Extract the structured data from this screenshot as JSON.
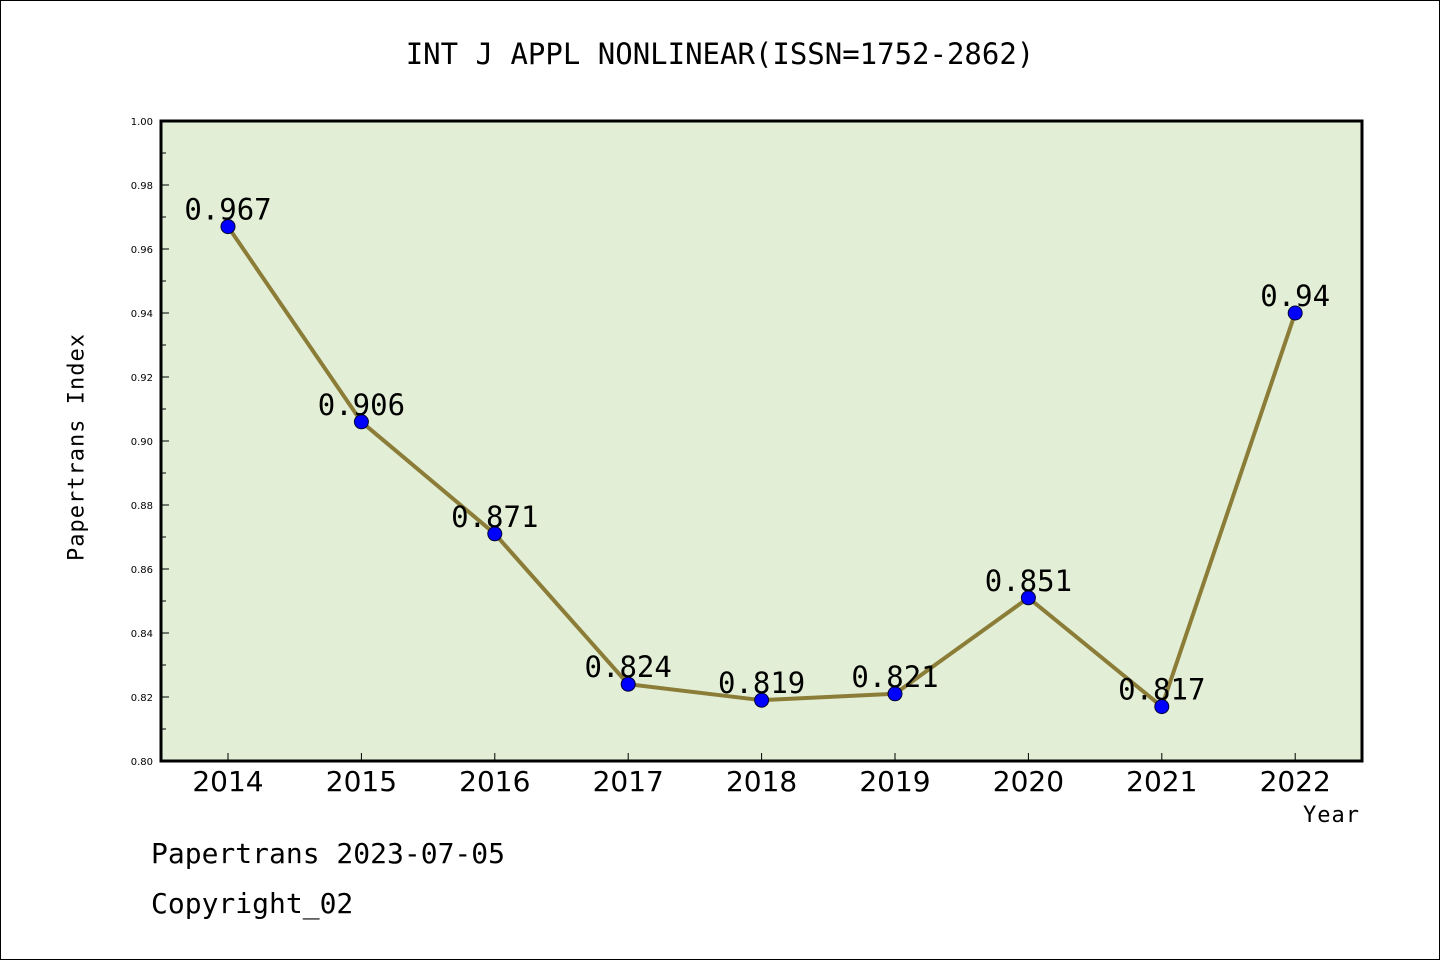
{
  "colors": {
    "plot_background": "#e2efd6",
    "line": "#8b7d38",
    "marker": "#0000ff",
    "axis": "#000000"
  },
  "footer": {
    "date": "Papertrans 2023-07-05",
    "copyright": "Copyright_02"
  },
  "chart_data": {
    "type": "line",
    "title": "INT J APPL NONLINEAR(ISSN=1752-2862)",
    "xlabel": "Year",
    "ylabel": "Papertrans Index",
    "categories": [
      "2014",
      "2015",
      "2016",
      "2017",
      "2018",
      "2019",
      "2020",
      "2021",
      "2022"
    ],
    "values": [
      0.967,
      0.906,
      0.871,
      0.824,
      0.819,
      0.821,
      0.851,
      0.817,
      0.94
    ],
    "data_labels": [
      "0.967",
      "0.906",
      "0.871",
      "0.824",
      "0.819",
      "0.821",
      "0.851",
      "0.817",
      "0.94"
    ],
    "ylim": [
      0.8,
      1.0
    ],
    "yticks": [
      "0.80",
      "0.82",
      "0.84",
      "0.86",
      "0.88",
      "0.90",
      "0.92",
      "0.94",
      "0.96",
      "0.98",
      "1.00"
    ],
    "grid": false,
    "legend": "none"
  }
}
